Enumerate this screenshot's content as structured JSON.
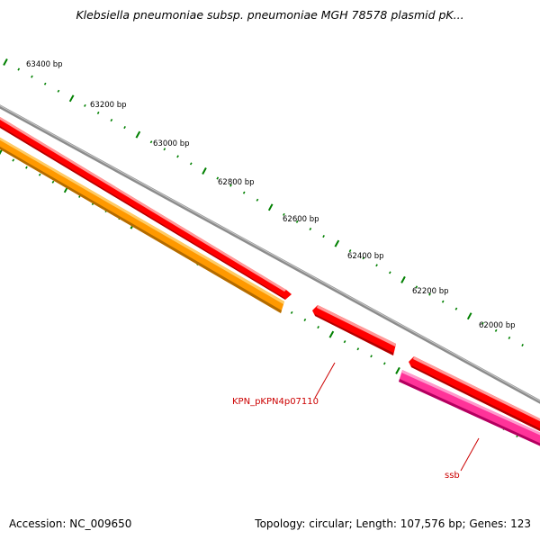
{
  "title": "Klebsiella pneumoniae subsp. pneumoniae MGH 78578 plasmid pK...",
  "footer": {
    "accession": "Accession: NC_009650",
    "summary": "Topology: circular; Length: 107,576 bp; Genes: 123"
  },
  "scale_labels": [
    "63400 bp",
    "63200 bp",
    "63000 bp",
    "62800 bp",
    "62600 bp",
    "62400 bp",
    "62200 bp",
    "62000 bp"
  ],
  "gene_labels": {
    "gene1": "KPN_pKPN4p07110",
    "gene2": "ssb"
  },
  "colors": {
    "backbone": "#8c8c8c",
    "forward_gene": "#ff0000",
    "reverse_gene": "#ff0000",
    "orange_gene": "#ff9900",
    "pink_gene": "#ff3399",
    "ticks": "#008000",
    "label_line": "#cc0000"
  }
}
